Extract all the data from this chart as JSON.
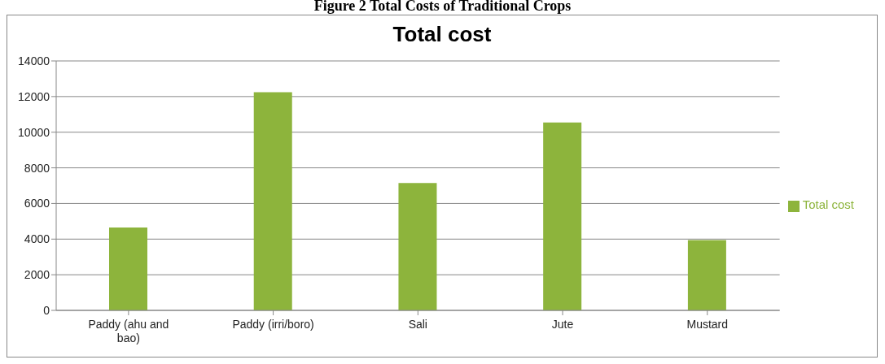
{
  "chart_data": {
    "type": "bar",
    "title": "Figure 2 Total Costs of Traditional Crops",
    "subtitle": "Total cost",
    "categories": [
      "Paddy (ahu and bao)",
      "Paddy (irri/boro)",
      "Sali",
      "Jute",
      "Mustard"
    ],
    "series": [
      {
        "name": "Total cost",
        "color": "#8db43c",
        "values": [
          4650,
          12250,
          7150,
          10550,
          3950
        ]
      }
    ],
    "ylim": [
      0,
      14000
    ],
    "yticks": [
      0,
      2000,
      4000,
      6000,
      8000,
      10000,
      12000,
      14000
    ],
    "grid": "y",
    "legend": "right"
  }
}
